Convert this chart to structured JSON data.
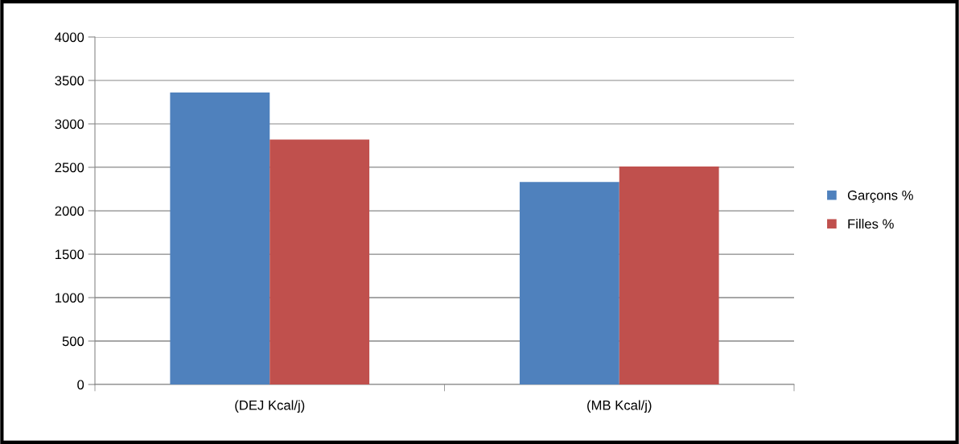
{
  "chart_data": {
    "type": "bar",
    "categories": [
      "(DEJ Kcal/j)",
      "(MB Kcal/j)"
    ],
    "series": [
      {
        "name": "Garçons %",
        "color": "#4f81bd",
        "values": [
          3360,
          2330
        ]
      },
      {
        "name": "Filles %",
        "color": "#c0504d",
        "values": [
          2820,
          2510
        ]
      }
    ],
    "ylim": [
      0,
      4000
    ],
    "yticks": [
      0,
      500,
      1000,
      1500,
      2000,
      2500,
      3000,
      3500,
      4000
    ],
    "grid": "y",
    "legend": "right"
  }
}
